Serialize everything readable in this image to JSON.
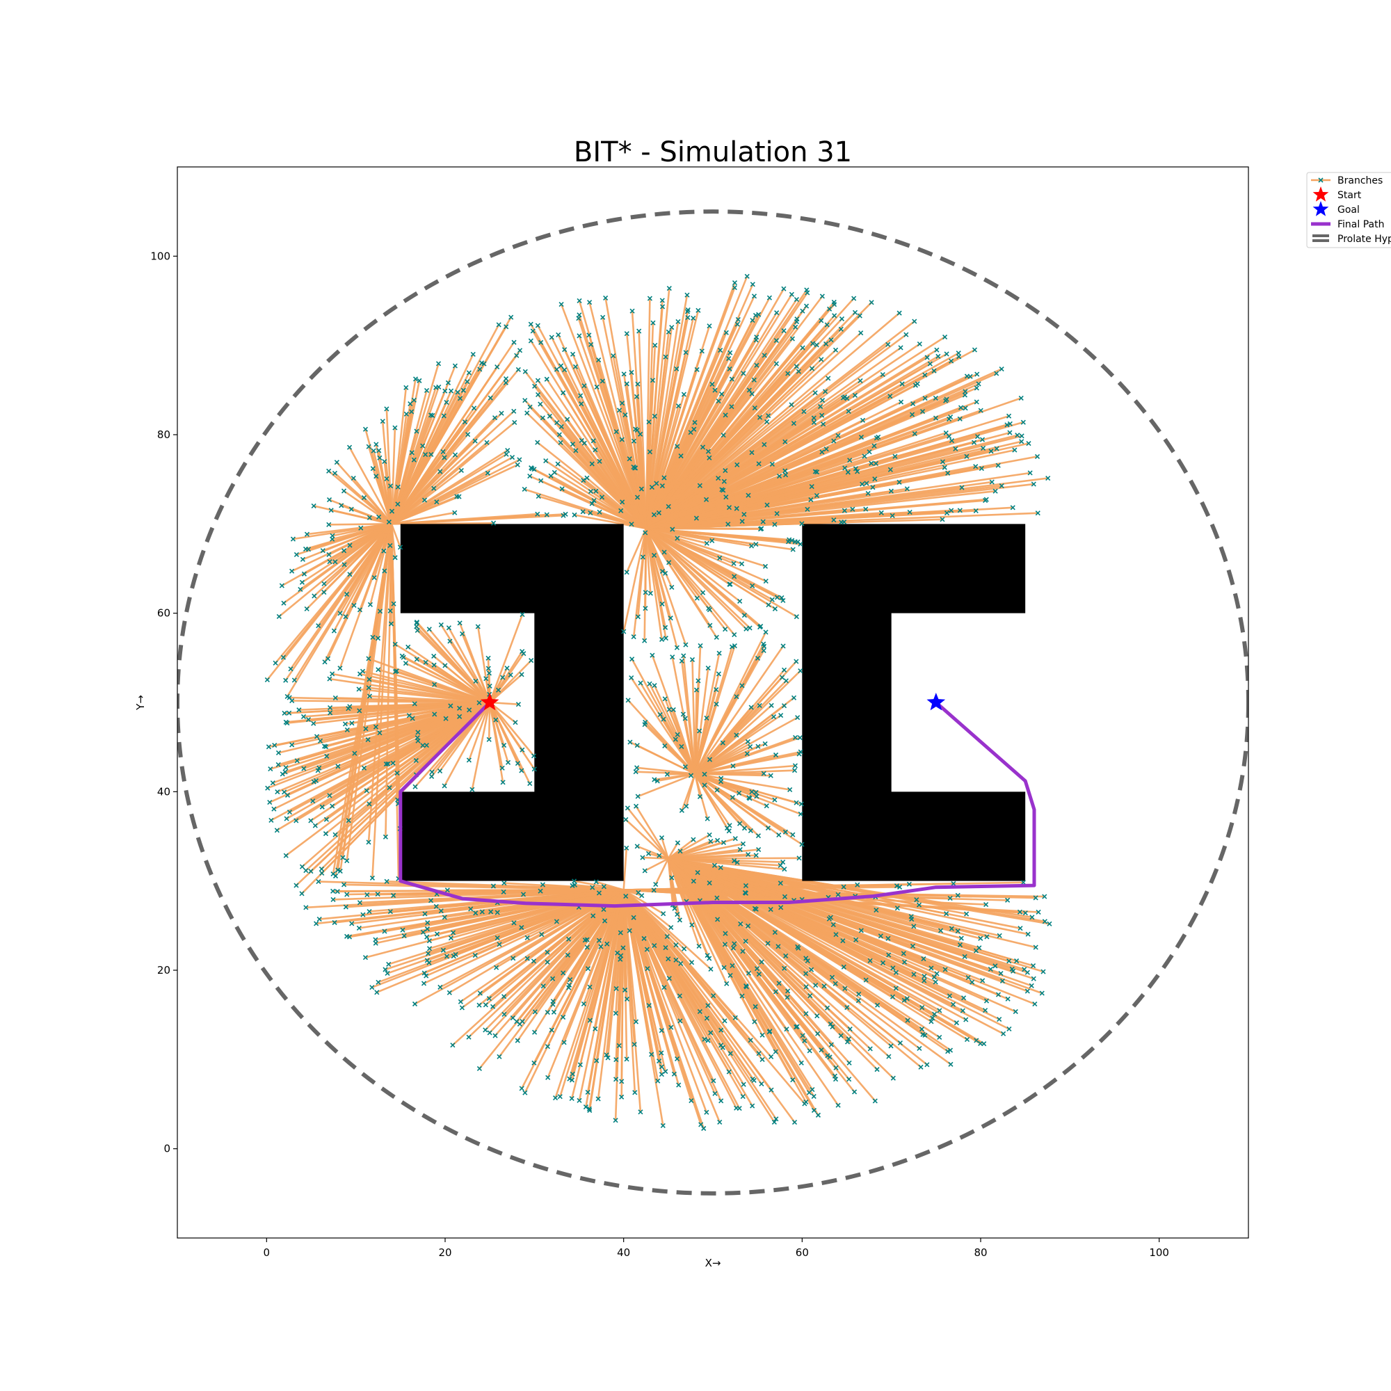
{
  "chart_data": {
    "type": "scatter",
    "title": "BIT* - Simulation 31",
    "xlabel": "X→",
    "ylabel": "Y→",
    "xlim": [
      -10,
      110
    ],
    "ylim": [
      -10,
      110
    ],
    "xticks": [
      0,
      20,
      40,
      60,
      80,
      100
    ],
    "yticks": [
      0,
      20,
      40,
      60,
      80,
      100
    ],
    "grid": false,
    "legend": {
      "placement": "outside-top-right",
      "entries": [
        {
          "key": "branches",
          "label": "Branches"
        },
        {
          "key": "start",
          "label": "Start"
        },
        {
          "key": "goal",
          "label": "Goal"
        },
        {
          "key": "path",
          "label": "Final Path"
        },
        {
          "key": "ellipse",
          "label": "Prolate Hyp"
        }
      ]
    },
    "colors": {
      "branch": "#f4a460",
      "node": "#008080",
      "start": "#ff0000",
      "goal": "#0000ff",
      "path": "#9932cc",
      "ellipse": "#666666",
      "obstacle": "#000000"
    },
    "start": [
      25,
      50
    ],
    "goal": [
      75,
      50
    ],
    "obstacles": [
      [
        [
          15,
          70
        ],
        [
          40,
          70
        ],
        [
          40,
          30
        ],
        [
          15,
          30
        ],
        [
          15,
          40
        ],
        [
          30,
          40
        ],
        [
          30,
          60
        ],
        [
          15,
          60
        ]
      ],
      [
        [
          60,
          70
        ],
        [
          85,
          70
        ],
        [
          85,
          60
        ],
        [
          70,
          60
        ],
        [
          70,
          40
        ],
        [
          85,
          40
        ],
        [
          85,
          30
        ],
        [
          60,
          30
        ]
      ]
    ],
    "final_path": [
      [
        25,
        50
      ],
      [
        15,
        40
      ],
      [
        15,
        30
      ],
      [
        22,
        28
      ],
      [
        29,
        27.5
      ],
      [
        39,
        27.2
      ],
      [
        50,
        27.6
      ],
      [
        58.5,
        27.6
      ],
      [
        68,
        28.3
      ],
      [
        75,
        29.3
      ],
      [
        86,
        29.5
      ],
      [
        86,
        38
      ],
      [
        85,
        41.2
      ],
      [
        75,
        50
      ]
    ],
    "ellipse": {
      "center": [
        50,
        50
      ],
      "rx": 60,
      "ry": 55
    },
    "tree": {
      "hubs": [
        [
          25,
          50
        ],
        [
          15,
          30
        ],
        [
          14,
          70
        ],
        [
          42.5,
          69.5
        ],
        [
          45,
          32.5
        ],
        [
          48,
          42
        ],
        [
          40,
          29
        ]
      ],
      "approx_node_count": 1500
    }
  }
}
